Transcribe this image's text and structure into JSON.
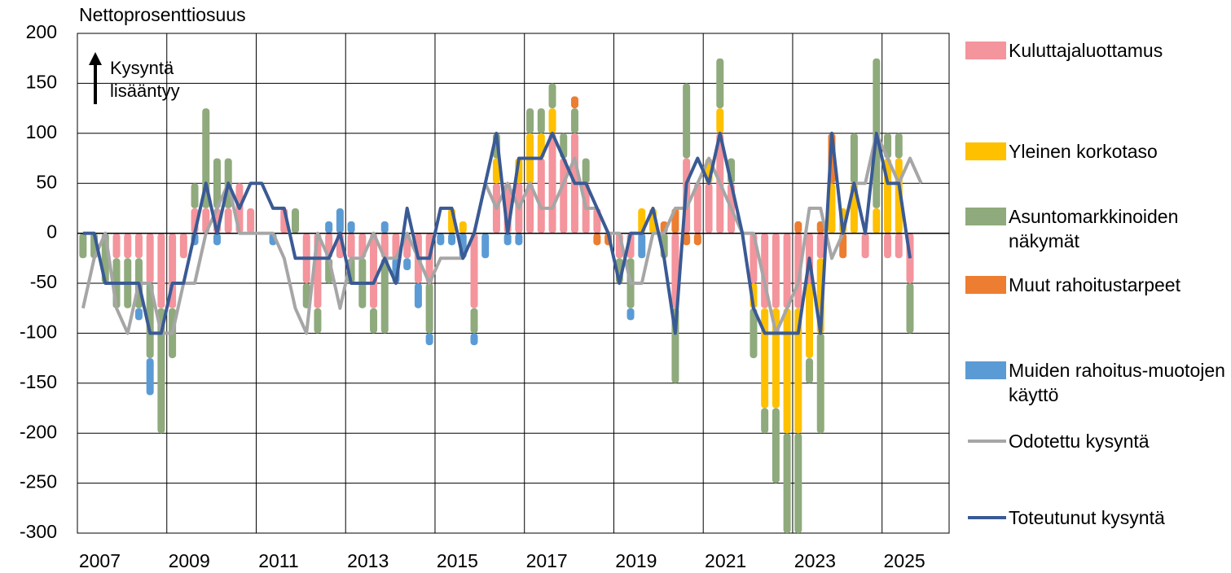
{
  "chart_data": {
    "type": "stacked-bar-line",
    "y_axis_label": "Nettoprosenttiosuus",
    "annotation": "Kysyntä lisääntyy",
    "categories": [
      "2007",
      null,
      null,
      null,
      null,
      null,
      null,
      null,
      "2009",
      null,
      null,
      null,
      null,
      null,
      null,
      null,
      "2011",
      null,
      null,
      null,
      null,
      null,
      null,
      null,
      "2013",
      null,
      null,
      null,
      null,
      null,
      null,
      null,
      "2015",
      null,
      null,
      null,
      null,
      null,
      null,
      null,
      "2017",
      null,
      null,
      null,
      null,
      null,
      null,
      null,
      "2019",
      null,
      null,
      null,
      null,
      null,
      null,
      null,
      "2021",
      null,
      null,
      null,
      null,
      null,
      null,
      null,
      "2023",
      null,
      null,
      null,
      null,
      null,
      null,
      null,
      "2025",
      null,
      null,
      null,
      null,
      null
    ],
    "ylim": [
      -300,
      200
    ],
    "yticks": [
      -300,
      -250,
      -200,
      -150,
      -100,
      -50,
      0,
      50,
      100,
      150,
      200
    ],
    "grid": true,
    "series": [
      {
        "name": "Kuluttajaluottamus",
        "kind": "bar",
        "color": "#f4949c",
        "values": [
          0,
          0,
          0,
          -25,
          -25,
          -25,
          -50,
          -75,
          -75,
          -25,
          25,
          25,
          25,
          25,
          50,
          25,
          0,
          0,
          25,
          0,
          -50,
          -75,
          -25,
          -25,
          -25,
          -25,
          -75,
          -25,
          -25,
          -25,
          -50,
          -50,
          0,
          0,
          0,
          -75,
          0,
          50,
          50,
          50,
          50,
          75,
          100,
          75,
          100,
          50,
          25,
          0,
          -25,
          -25,
          0,
          0,
          0,
          -75,
          75,
          50,
          50,
          100,
          50,
          0,
          -50,
          -75,
          -75,
          -75,
          -75,
          -50,
          -25,
          0,
          0,
          0,
          -25,
          0,
          -25,
          -25,
          -50,
          null,
          null,
          null
        ]
      },
      {
        "name": "Yleinen korkotaso",
        "kind": "bar",
        "color": "#ffc000",
        "values": [
          0,
          0,
          0,
          0,
          0,
          0,
          0,
          0,
          0,
          0,
          0,
          0,
          0,
          0,
          0,
          0,
          0,
          0,
          0,
          0,
          0,
          0,
          0,
          0,
          0,
          0,
          0,
          0,
          0,
          0,
          0,
          0,
          0,
          25,
          12,
          0,
          0,
          25,
          0,
          25,
          50,
          25,
          25,
          0,
          0,
          0,
          0,
          0,
          0,
          0,
          25,
          25,
          0,
          0,
          0,
          0,
          25,
          25,
          0,
          0,
          -25,
          -100,
          -100,
          -125,
          -125,
          -75,
          -75,
          50,
          25,
          50,
          0,
          25,
          75,
          75,
          0,
          null,
          null,
          null
        ]
      },
      {
        "name": "Asuntomarkkinoiden näkymät",
        "kind": "bar",
        "color": "#8faa7c",
        "values": [
          -25,
          -25,
          -50,
          -50,
          -50,
          -50,
          -75,
          -125,
          -50,
          0,
          25,
          100,
          50,
          50,
          0,
          0,
          0,
          0,
          0,
          25,
          -25,
          -25,
          -25,
          0,
          -25,
          -50,
          -25,
          -75,
          0,
          0,
          0,
          -50,
          0,
          0,
          0,
          -25,
          0,
          25,
          0,
          0,
          25,
          25,
          25,
          25,
          25,
          25,
          0,
          0,
          -25,
          -50,
          0,
          0,
          -25,
          -75,
          75,
          0,
          0,
          50,
          25,
          0,
          -50,
          -25,
          -75,
          -100,
          -100,
          -25,
          -100,
          0,
          0,
          50,
          0,
          150,
          25,
          25,
          -50,
          null,
          null,
          null
        ]
      },
      {
        "name": "Muut rahoitustarpeet",
        "kind": "bar",
        "color": "#ed7d31",
        "values": [
          0,
          0,
          0,
          0,
          0,
          0,
          0,
          0,
          0,
          0,
          0,
          0,
          0,
          0,
          0,
          0,
          0,
          0,
          0,
          0,
          0,
          0,
          0,
          0,
          0,
          0,
          0,
          0,
          0,
          0,
          0,
          0,
          0,
          0,
          0,
          0,
          0,
          0,
          0,
          0,
          0,
          0,
          0,
          0,
          12,
          0,
          -12,
          -12,
          0,
          0,
          0,
          0,
          12,
          25,
          -12,
          -12,
          0,
          0,
          0,
          0,
          0,
          0,
          0,
          0,
          12,
          0,
          12,
          50,
          -25,
          0,
          0,
          0,
          0,
          0,
          0,
          null,
          null,
          null
        ]
      },
      {
        "name": "Muiden rahoitus-muotojen käyttö",
        "kind": "bar",
        "color": "#5b9bd5",
        "values": [
          0,
          0,
          0,
          0,
          0,
          -12,
          -37,
          0,
          0,
          0,
          -12,
          0,
          -12,
          0,
          0,
          0,
          0,
          -12,
          0,
          0,
          0,
          0,
          12,
          25,
          12,
          0,
          0,
          12,
          -25,
          -12,
          -25,
          -12,
          -12,
          -12,
          -25,
          -12,
          -25,
          0,
          -12,
          -12,
          0,
          0,
          0,
          0,
          0,
          0,
          0,
          0,
          0,
          -12,
          -25,
          0,
          0,
          0,
          0,
          0,
          0,
          0,
          0,
          0,
          0,
          0,
          0,
          0,
          0,
          0,
          0,
          0,
          0,
          0,
          0,
          0,
          0,
          0,
          0,
          null,
          null,
          null
        ]
      },
      {
        "name": "Odotettu kysyntä",
        "kind": "line",
        "color": "#a6a6a6",
        "values": [
          -75,
          -25,
          0,
          -75,
          -100,
          -50,
          -50,
          -100,
          -100,
          -50,
          -50,
          0,
          25,
          50,
          0,
          0,
          0,
          0,
          -25,
          -75,
          -100,
          0,
          -25,
          -75,
          -25,
          -25,
          0,
          -25,
          -25,
          0,
          -25,
          -50,
          -25,
          -25,
          -25,
          0,
          50,
          25,
          50,
          25,
          50,
          25,
          25,
          50,
          75,
          25,
          25,
          0,
          0,
          -50,
          -50,
          0,
          0,
          25,
          25,
          50,
          75,
          50,
          25,
          0,
          0,
          -50,
          -100,
          -75,
          -50,
          25,
          25,
          -25,
          0,
          50,
          50,
          100,
          75,
          50,
          75,
          50,
          null,
          null
        ]
      },
      {
        "name": "Toteutunut kysyntä",
        "kind": "line",
        "color": "#3a5a94",
        "values": [
          0,
          0,
          -50,
          -50,
          -50,
          -50,
          -100,
          -100,
          -50,
          -50,
          0,
          50,
          0,
          50,
          25,
          50,
          50,
          25,
          25,
          -25,
          -25,
          -25,
          -25,
          0,
          -50,
          -50,
          -50,
          -25,
          -50,
          25,
          -25,
          -25,
          25,
          25,
          -25,
          0,
          50,
          100,
          0,
          75,
          75,
          75,
          100,
          75,
          50,
          50,
          25,
          0,
          -50,
          0,
          0,
          25,
          -25,
          -100,
          50,
          75,
          50,
          100,
          50,
          0,
          -75,
          -100,
          -100,
          -100,
          -100,
          -25,
          -100,
          100,
          0,
          50,
          0,
          100,
          50,
          50,
          -25,
          null,
          null,
          null
        ]
      }
    ]
  }
}
